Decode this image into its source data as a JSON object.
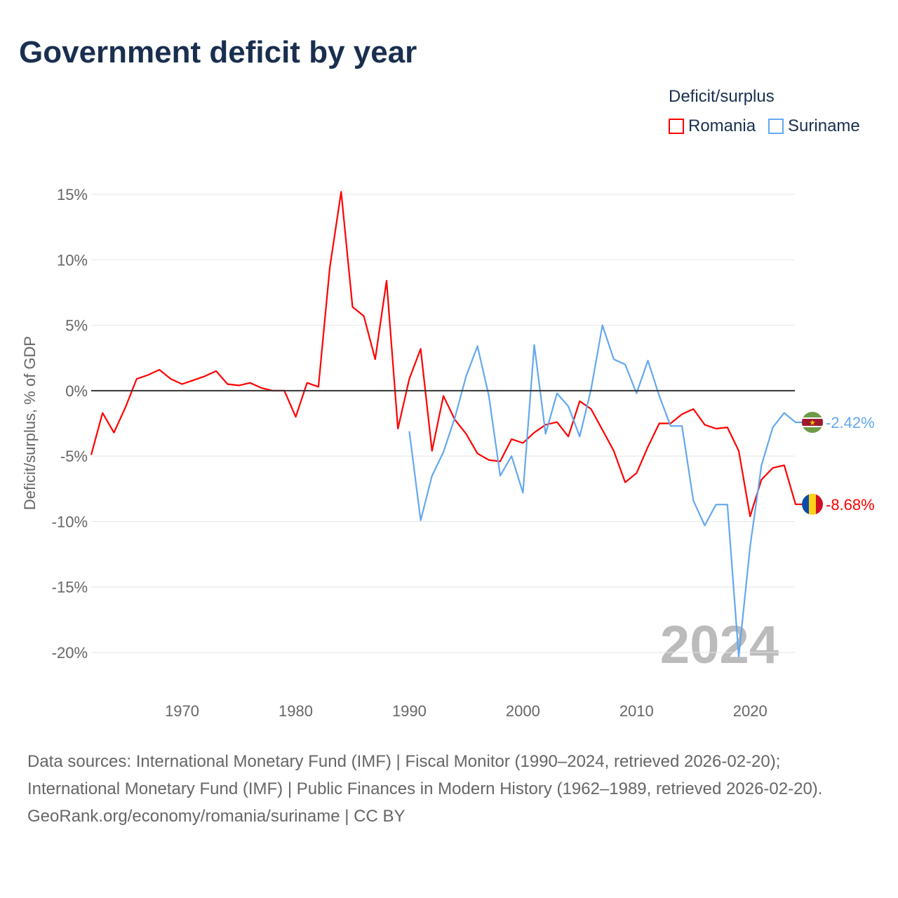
{
  "title": "Government deficit by year",
  "legend": {
    "title": "Deficit/surplus"
  },
  "chart_data": {
    "type": "line",
    "title": "Government deficit by year",
    "ylabel": "Deficit/surplus, % of GDP",
    "xlabel": "",
    "xlim": [
      1962,
      2024
    ],
    "ylim": [
      -20,
      15
    ],
    "x_ticks": [
      1970,
      1980,
      1990,
      2000,
      2010,
      2020
    ],
    "y_ticks": [
      15,
      10,
      5,
      0,
      -5,
      -10,
      -15,
      -20
    ],
    "y_tick_labels": [
      "15%",
      "10%",
      "5%",
      "0%",
      "-5%",
      "-10%",
      "-15%",
      "-20%"
    ],
    "grid": true,
    "legend_position": "top-right",
    "year_watermark": "2024",
    "series": [
      {
        "name": "Romania",
        "color": "#ff0000",
        "end_label": "-8.68%",
        "start_year": 1962,
        "values": [
          -4.9,
          -1.7,
          -3.2,
          -1.3,
          0.9,
          1.2,
          1.6,
          0.9,
          0.5,
          0.8,
          1.1,
          1.5,
          0.5,
          0.4,
          0.6,
          0.2,
          0,
          0,
          -2.0,
          0.6,
          0.3,
          9.4,
          15.2,
          6.4,
          5.7,
          2.4,
          8.4,
          -2.9,
          0.9,
          3.2,
          -4.6,
          -0.4,
          -2.2,
          -3.3,
          -4.8,
          -5.3,
          -5.4,
          -3.7,
          -4.0,
          -3.2,
          -2.6,
          -2.4,
          -3.5,
          -0.8,
          -1.4,
          -3.0,
          -4.6,
          -7.0,
          -6.3,
          -4.3,
          -2.5,
          -2.5,
          -1.8,
          -1.4,
          -2.6,
          -2.9,
          -2.8,
          -4.6,
          -9.6,
          -6.8,
          -5.9,
          -5.7,
          -8.68
        ]
      },
      {
        "name": "Suriname",
        "color": "#63a8ef",
        "end_label": "-2.42%",
        "start_year": 1990,
        "values": [
          -3.1,
          -9.9,
          -6.5,
          -4.7,
          -2.1,
          1.1,
          3.4,
          -0.4,
          -6.5,
          -5.0,
          -7.8,
          3.5,
          -3.3,
          -0.2,
          -1.2,
          -3.5,
          0.1,
          5.0,
          2.4,
          2.0,
          -0.2,
          2.3,
          -0.4,
          -2.7,
          -2.7,
          -8.4,
          -10.3,
          -8.7,
          -8.7,
          -20.3,
          -11.9,
          -5.7,
          -2.8,
          -1.7,
          -2.42
        ]
      }
    ]
  },
  "sources": {
    "line1": "Data sources: International Monetary Fund (IMF) | Fiscal Monitor (1990–2024, retrieved 2026-02-20); International Monetary Fund (IMF) | Public Finances in Modern History (1962–1989, retrieved 2026-02-20).",
    "line2": "GeoRank.org/economy/romania/suriname | CC BY"
  }
}
